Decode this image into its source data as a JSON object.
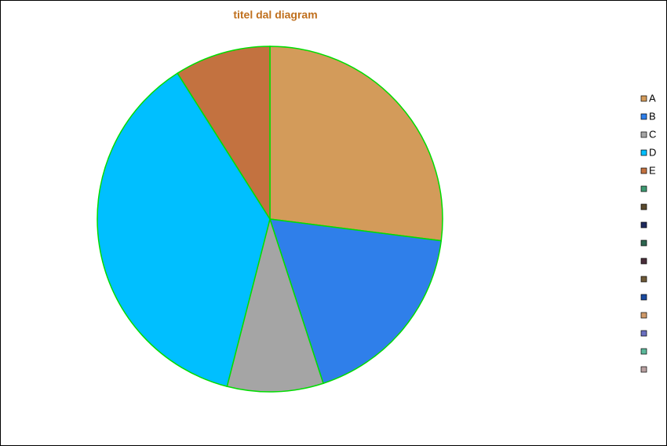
{
  "chart_data": {
    "type": "pie",
    "title": "titel dal diagram",
    "categories": [
      "A",
      "B",
      "C",
      "D",
      "E",
      null,
      null,
      null,
      null,
      null,
      null,
      null,
      null,
      null,
      null,
      null
    ],
    "values": [
      27,
      18,
      9,
      37,
      9,
      null,
      null,
      null,
      null,
      null,
      null,
      null,
      null,
      null,
      null,
      null
    ],
    "colors": [
      "#d39b5a",
      "#2f7fea",
      "#a5a5a5",
      "#00bfff",
      "#c37240",
      "#3d9a72",
      "#5a4a2e",
      "#1e2a5e",
      "#2e6650",
      "#4a2f3a",
      "#6e5a38",
      "#1b4aa0",
      "#cf9a6a",
      "#6a6fc0",
      "#5bb89a",
      "#b8a0a0"
    ],
    "legend": "right"
  }
}
